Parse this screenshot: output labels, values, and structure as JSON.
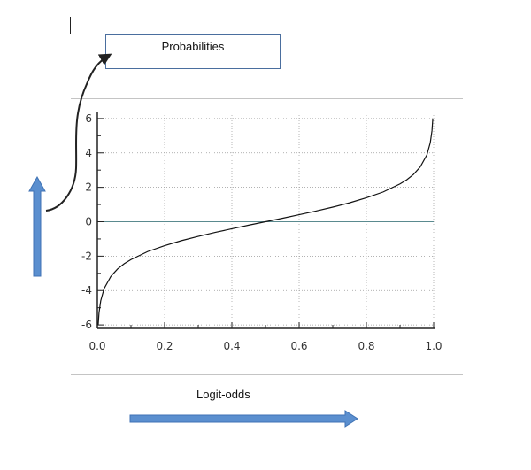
{
  "annotation": {
    "label": "Probabilities",
    "xaxis_title": "Logit-odds"
  },
  "colors": {
    "arrow_fill": "#5b8fcf",
    "arrow_stroke": "#3f72b4",
    "curve": "#111111",
    "zero_line": "#5a8a8f",
    "grid": "#999999",
    "box_border": "#4a6e9e"
  },
  "chart_data": {
    "type": "line",
    "function": "logit",
    "title": "",
    "xlabel": "",
    "ylabel": "",
    "xlim": [
      0,
      1
    ],
    "ylim": [
      -6.2,
      6.2
    ],
    "x_ticks": [
      "0.0",
      "0.2",
      "0.4",
      "0.6",
      "0.8",
      "1.0"
    ],
    "y_ticks": [
      "6",
      "4",
      "2",
      "0",
      "-2",
      "-4",
      "-6"
    ],
    "grid": true,
    "series": [
      {
        "x": [
          0.0025,
          0.005,
          0.01,
          0.02,
          0.04,
          0.06,
          0.08,
          0.1,
          0.15,
          0.2,
          0.25,
          0.3,
          0.35,
          0.4,
          0.45,
          0.5,
          0.55,
          0.6,
          0.65,
          0.7,
          0.75,
          0.8,
          0.85,
          0.9,
          0.92,
          0.94,
          0.96,
          0.98,
          0.99,
          0.995,
          0.9975
        ],
        "y": [
          -5.99,
          -5.29,
          -4.6,
          -3.89,
          -3.18,
          -2.75,
          -2.44,
          -2.2,
          -1.73,
          -1.39,
          -1.1,
          -0.85,
          -0.62,
          -0.41,
          -0.2,
          0.0,
          0.2,
          0.41,
          0.62,
          0.85,
          1.1,
          1.39,
          1.73,
          2.2,
          2.44,
          2.75,
          3.18,
          3.89,
          4.6,
          5.29,
          5.99
        ]
      }
    ]
  }
}
